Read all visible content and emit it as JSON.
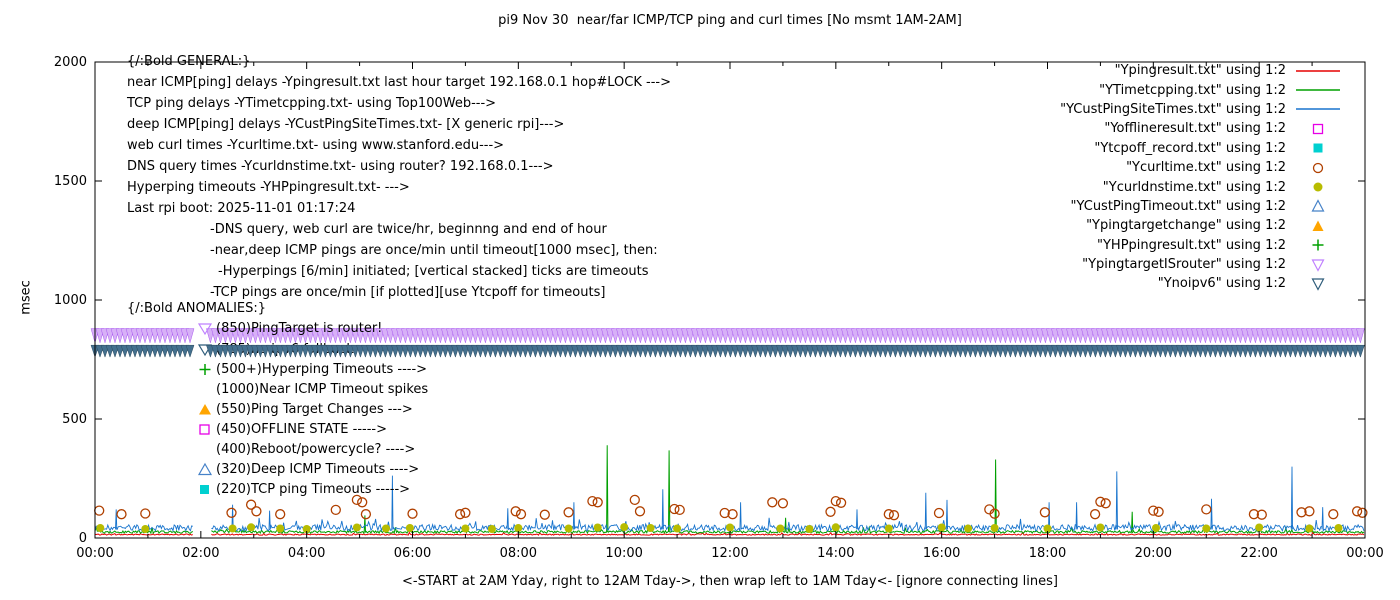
{
  "chart_data": {
    "type": "line",
    "title": "pi9 Nov 30  near/far ICMP/TCP ping and curl times [No msmt 1AM-2AM]",
    "xlabel": "<-START at 2AM Yday, right to 12AM Tday->, then wrap left to 1AM Tday<- [ignore connecting lines]",
    "ylabel": "msec",
    "ylim": [
      0,
      2000
    ],
    "xlim_hours": [
      0,
      24
    ],
    "y_ticks": [
      0,
      500,
      1000,
      1500,
      2000
    ],
    "x_ticks": [
      "00:00",
      "02:00",
      "04:00",
      "06:00",
      "08:00",
      "10:00",
      "12:00",
      "14:00",
      "16:00",
      "18:00",
      "20:00",
      "22:00",
      "00:00"
    ],
    "gap_hours": [
      1.85,
      2.18
    ],
    "legend_position": "top-right",
    "grid": false,
    "series": [
      {
        "name": "Ypingresult.txt",
        "label": "\"Ypingresult.txt\" using 1:2",
        "color": "#e60000",
        "style": "line"
      },
      {
        "name": "YTimetcpping.txt",
        "label": "\"YTimetcpping.txt\" using 1:2",
        "color": "#00a000",
        "style": "line"
      },
      {
        "name": "YCustPingSiteTimes.txt",
        "label": "\"YCustPingSiteTimes.txt\" using 1:2",
        "color": "#1874cd",
        "style": "line"
      },
      {
        "name": "Yofflineresult.txt",
        "label": "\"Yofflineresult.txt\" using 1:2",
        "color": "#e600e6",
        "style": "open-square"
      },
      {
        "name": "Ytcpoff_record.txt",
        "label": "\"Ytcpoff_record.txt\" using 1:2",
        "color": "#00d0d0",
        "style": "filled-square"
      },
      {
        "name": "Ycurltime.txt",
        "label": "\"Ycurltime.txt\" using 1:2",
        "color": "#b04000",
        "style": "open-circle"
      },
      {
        "name": "Ycurldnstime.txt",
        "label": "\"Ycurldnstime.txt\" using 1:2",
        "color": "#b8bc00",
        "style": "filled-circle"
      },
      {
        "name": "YCustPingTimeout.txt",
        "label": "\"YCustPingTimeout.txt\" using 1:2",
        "color": "#4682c8",
        "style": "open-triangle"
      },
      {
        "name": "Ypingtargetchange",
        "label": "\"Ypingtargetchange\" using 1:2",
        "color": "#ffa500",
        "style": "filled-triangle"
      },
      {
        "name": "YHPpingresult.txt",
        "label": "\"YHPpingresult.txt\" using 1:2",
        "color": "#00a000",
        "style": "plus"
      },
      {
        "name": "YpingtargetISrouter",
        "label": "\"YpingtargetISrouter\" using 1:2",
        "color": "#bf80ff",
        "style": "open-inv-triangle"
      },
      {
        "name": "Ynoipv6",
        "label": "\"Ynoipv6\" using 1:2",
        "color": "#2e5c7a",
        "style": "open-inv-triangle"
      }
    ],
    "lines": [
      {
        "series": 0,
        "base": 12,
        "noise": 5,
        "spikes": []
      },
      {
        "series": 1,
        "base": 20,
        "noise": 11,
        "spikes": [
          [
            5.1,
            95
          ],
          [
            9.68,
            390
          ],
          [
            10.85,
            368
          ],
          [
            13.05,
            85
          ],
          [
            17.02,
            330
          ],
          [
            19.6,
            110
          ]
        ]
      },
      {
        "series": 2,
        "base": 30,
        "noise": 26,
        "spikes": [
          [
            0.4,
            120
          ],
          [
            2.6,
            140
          ],
          [
            3.3,
            115
          ],
          [
            5.62,
            262
          ],
          [
            7.8,
            125
          ],
          [
            9.05,
            150
          ],
          [
            10.73,
            205
          ],
          [
            12.2,
            150
          ],
          [
            14.4,
            120
          ],
          [
            15.7,
            190
          ],
          [
            16.1,
            160
          ],
          [
            18.03,
            150
          ],
          [
            18.55,
            150
          ],
          [
            19.31,
            280
          ],
          [
            21.1,
            165
          ],
          [
            22.62,
            300
          ],
          [
            23.2,
            130
          ]
        ]
      }
    ],
    "scatter": [
      {
        "series": 5,
        "r": 4.5,
        "filled": false,
        "points": [
          [
            0.08,
            115
          ],
          [
            0.5,
            100
          ],
          [
            0.95,
            103
          ],
          [
            2.58,
            106
          ],
          [
            2.95,
            140
          ],
          [
            3.05,
            112
          ],
          [
            3.5,
            100
          ],
          [
            4.55,
            118
          ],
          [
            4.95,
            160
          ],
          [
            5.05,
            150
          ],
          [
            5.12,
            100
          ],
          [
            6.0,
            102
          ],
          [
            6.9,
            100
          ],
          [
            7.0,
            106
          ],
          [
            7.95,
            112
          ],
          [
            8.05,
            100
          ],
          [
            8.5,
            98
          ],
          [
            8.95,
            108
          ],
          [
            9.4,
            155
          ],
          [
            9.5,
            150
          ],
          [
            10.2,
            160
          ],
          [
            10.3,
            112
          ],
          [
            10.95,
            122
          ],
          [
            11.05,
            118
          ],
          [
            11.9,
            105
          ],
          [
            12.05,
            100
          ],
          [
            12.8,
            150
          ],
          [
            13.0,
            146
          ],
          [
            13.9,
            110
          ],
          [
            14.0,
            155
          ],
          [
            14.1,
            148
          ],
          [
            15.0,
            100
          ],
          [
            15.1,
            96
          ],
          [
            15.95,
            105
          ],
          [
            16.9,
            120
          ],
          [
            17.0,
            102
          ],
          [
            17.95,
            108
          ],
          [
            18.9,
            100
          ],
          [
            19.0,
            152
          ],
          [
            19.1,
            146
          ],
          [
            20.0,
            115
          ],
          [
            20.1,
            110
          ],
          [
            21.0,
            120
          ],
          [
            21.9,
            100
          ],
          [
            22.05,
            98
          ],
          [
            22.8,
            108
          ],
          [
            22.95,
            112
          ],
          [
            23.4,
            100
          ],
          [
            23.85,
            112
          ],
          [
            23.95,
            106
          ]
        ]
      },
      {
        "series": 6,
        "r": 4,
        "filled": true,
        "points": [
          [
            0.1,
            42
          ],
          [
            0.95,
            38
          ],
          [
            2.6,
            40
          ],
          [
            2.95,
            45
          ],
          [
            3.5,
            40
          ],
          [
            4.0,
            38
          ],
          [
            4.95,
            44
          ],
          [
            5.5,
            40
          ],
          [
            5.95,
            42
          ],
          [
            7.0,
            40
          ],
          [
            7.5,
            38
          ],
          [
            8.0,
            42
          ],
          [
            8.95,
            40
          ],
          [
            9.5,
            44
          ],
          [
            10.0,
            46
          ],
          [
            10.5,
            42
          ],
          [
            11.0,
            40
          ],
          [
            12.0,
            44
          ],
          [
            12.95,
            40
          ],
          [
            13.5,
            38
          ],
          [
            14.0,
            45
          ],
          [
            15.0,
            40
          ],
          [
            16.0,
            44
          ],
          [
            16.5,
            40
          ],
          [
            17.0,
            42
          ],
          [
            18.0,
            40
          ],
          [
            19.0,
            44
          ],
          [
            20.05,
            42
          ],
          [
            21.0,
            40
          ],
          [
            22.0,
            44
          ],
          [
            22.95,
            40
          ],
          [
            23.5,
            42
          ]
        ]
      }
    ],
    "bands": [
      {
        "series": 10,
        "msec": 850,
        "height_msec": 60,
        "fill": "#d7b0f7",
        "stroke": "#a957f0"
      },
      {
        "series": 11,
        "msec": 785,
        "height_msec": 50,
        "fill": "#44708e",
        "stroke": "#2b4a60"
      }
    ]
  },
  "annotations": {
    "general": [
      "{/:Bold GENERAL:}",
      "near ICMP[ping] delays -Ypingresult.txt last hour target 192.168.0.1 hop#LOCK --->",
      "TCP ping delays -YTimetcpping.txt- using Top100Web--->",
      "deep ICMP[ping] delays -YCustPingSiteTimes.txt- [X generic rpi]--->",
      "web curl times -Ycurltime.txt- using www.stanford.edu--->",
      "DNS query times -Ycurldnstime.txt- using router? 192.168.0.1--->",
      "Hyperping timeouts -YHPpingresult.txt- --->",
      "Last rpi boot: 2025-11-01 01:17:24",
      "-DNS query, web curl are twice/hr, beginnng and end of hour",
      "-near,deep ICMP pings are once/min until timeout[1000 msec], then:",
      "-Hyperpings [6/min] initiated; [vertical stacked] ticks are timeouts",
      "-TCP pings are once/min [if plotted][use Ytcpoff for timeouts]"
    ],
    "anomalies": [
      "{/:Bold ANOMALIES:}",
      "(850)PingTarget is router!",
      "(785)no ipv6 fallback ---->",
      "(500+)Hyperping Timeouts ---->",
      "(1000)Near ICMP Timeout spikes",
      "(550)Ping Target Changes --->",
      "(450)OFFLINE STATE ----->",
      "(400)Reboot/powercycle? ---->",
      "(320)Deep ICMP Timeouts ---->",
      "(220)TCP ping Timeouts ----->"
    ]
  }
}
